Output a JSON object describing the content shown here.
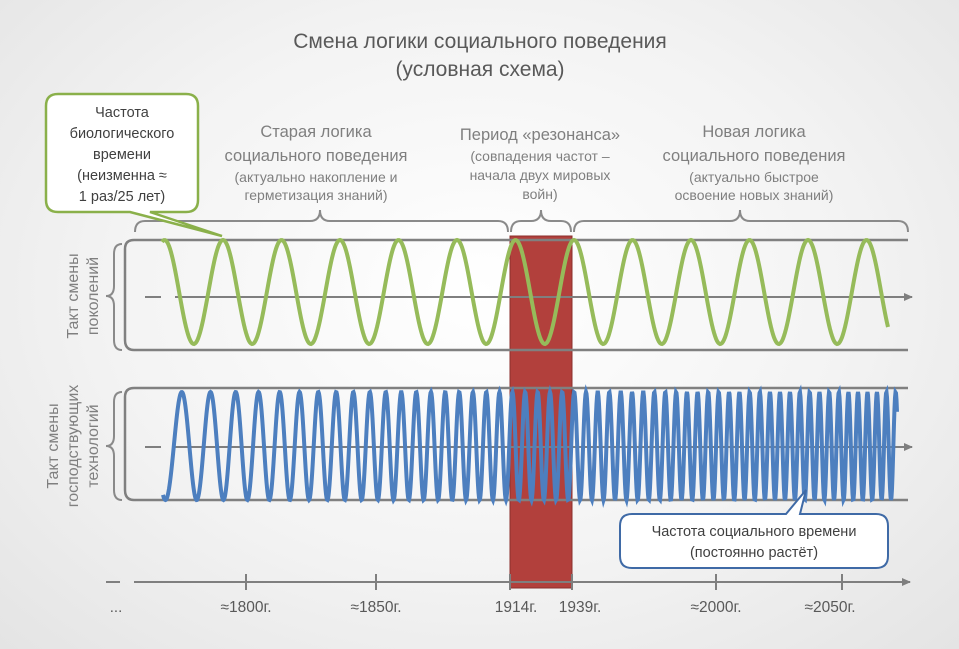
{
  "title": {
    "line1": "Смена логики социального поведения",
    "line2": "(условная схема)"
  },
  "callout_bio": {
    "lines": [
      "Частота",
      "биологического",
      "времени",
      "(неизменна ≈",
      "1 раз/25 лет)"
    ],
    "border_color": "#8ab04a"
  },
  "callout_social": {
    "lines": [
      "Частота социального времени",
      "(постоянно растёт)"
    ],
    "border_color": "#3f6aa6"
  },
  "periods": {
    "old": {
      "heading": [
        "Старая логика",
        "социального поведения"
      ],
      "sub": [
        "(актуально накопление и",
        "герметизация знаний)"
      ]
    },
    "resonance": {
      "heading": [
        "Период «резонанса»"
      ],
      "sub": [
        "(совпадения частот –",
        "начала двух мировых",
        "войн)"
      ]
    },
    "new": {
      "heading": [
        "Новая логика",
        "социального поведения"
      ],
      "sub": [
        "(актуально быстрое",
        "освоение новых знаний)"
      ]
    }
  },
  "row_labels": {
    "generations": [
      "Такт смены",
      "поколений"
    ],
    "technologies": [
      "Такт смены",
      "господствующих",
      "технологий"
    ]
  },
  "timeline": {
    "leading": "...",
    "ticks": [
      {
        "label": "≈1800г."
      },
      {
        "label": "≈1850г."
      },
      {
        "label": "1914г."
      },
      {
        "label": "1939г."
      },
      {
        "label": "≈2000г."
      },
      {
        "label": "≈2050г."
      }
    ]
  },
  "colors": {
    "green_wave": "#96bb5a",
    "blue_wave": "#4d7fbf",
    "resonance_band": "#b2403c",
    "axis": "#7f7f7f",
    "text": "#595959"
  }
}
